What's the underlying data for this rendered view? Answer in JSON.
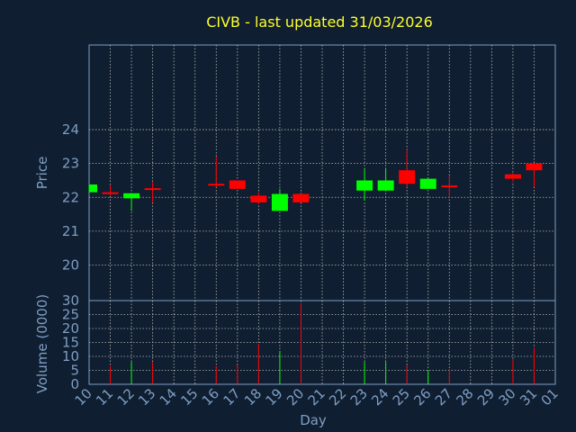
{
  "chart_data": {
    "type": "candlestick",
    "title": "CIVB - last updated 31/03/2026",
    "xlabel": "Day",
    "price_panel": {
      "ylabel": "Price",
      "yticks": [
        20,
        21,
        22,
        23,
        24
      ],
      "ylim": [
        18.95,
        26.5
      ],
      "grid": true
    },
    "volume_panel": {
      "ylabel": "Volume (0000)",
      "yticks": [
        0,
        5,
        10,
        15,
        20,
        25,
        30
      ],
      "ylim": [
        0,
        30
      ],
      "grid": true
    },
    "x_tick_labels": [
      "10",
      "11",
      "12",
      "13",
      "14",
      "15",
      "16",
      "17",
      "18",
      "19",
      "20",
      "21",
      "22",
      "23",
      "24",
      "25",
      "26",
      "27",
      "28",
      "29",
      "30",
      "31",
      "01"
    ],
    "candles": [
      {
        "day": "10",
        "open": 22.15,
        "high": 22.4,
        "low": 22.15,
        "close": 22.38,
        "volume": 0
      },
      {
        "day": "11",
        "open": 22.15,
        "high": 22.35,
        "low": 22.05,
        "close": 22.12,
        "volume": 6.5
      },
      {
        "day": "12",
        "open": 21.97,
        "high": 22.12,
        "low": 21.6,
        "close": 22.12,
        "volume": 8
      },
      {
        "day": "13",
        "open": 22.27,
        "high": 22.45,
        "low": 21.85,
        "close": 22.25,
        "volume": 8
      },
      {
        "day": "16",
        "open": 22.4,
        "high": 23.2,
        "low": 22.3,
        "close": 22.37,
        "volume": 6.5
      },
      {
        "day": "17",
        "open": 22.5,
        "high": 22.5,
        "low": 22.25,
        "close": 22.25,
        "volume": 7
      },
      {
        "day": "18",
        "open": 22.05,
        "high": 22.15,
        "low": 21.8,
        "close": 21.85,
        "volume": 14.5
      },
      {
        "day": "19",
        "open": 21.6,
        "high": 22.25,
        "low": 21.6,
        "close": 22.1,
        "volume": 12
      },
      {
        "day": "20",
        "open": 22.1,
        "high": 22.1,
        "low": 21.85,
        "close": 21.85,
        "volume": 29
      },
      {
        "day": "23",
        "open": 22.2,
        "high": 22.85,
        "low": 21.9,
        "close": 22.5,
        "volume": 8
      },
      {
        "day": "24",
        "open": 22.2,
        "high": 22.85,
        "low": 22.2,
        "close": 22.5,
        "volume": 8
      },
      {
        "day": "25",
        "open": 22.8,
        "high": 23.4,
        "low": 22.3,
        "close": 22.4,
        "volume": 7
      },
      {
        "day": "26",
        "open": 22.25,
        "high": 22.55,
        "low": 22.25,
        "close": 22.55,
        "volume": 5
      },
      {
        "day": "27",
        "open": 22.35,
        "high": 22.65,
        "low": 22.0,
        "close": 22.3,
        "volume": 5.5
      },
      {
        "day": "30",
        "open": 22.68,
        "high": 22.72,
        "low": 22.45,
        "close": 22.55,
        "volume": 9
      },
      {
        "day": "31",
        "open": 23.0,
        "high": 23.0,
        "low": 22.3,
        "close": 22.8,
        "volume": 13
      }
    ],
    "colors": {
      "background": "#0f1e30",
      "axis": "#7f9ec4",
      "grid": "#b8b8b8",
      "up": "#00ff00",
      "down": "#ff0000",
      "title": "#ffff2e"
    }
  }
}
